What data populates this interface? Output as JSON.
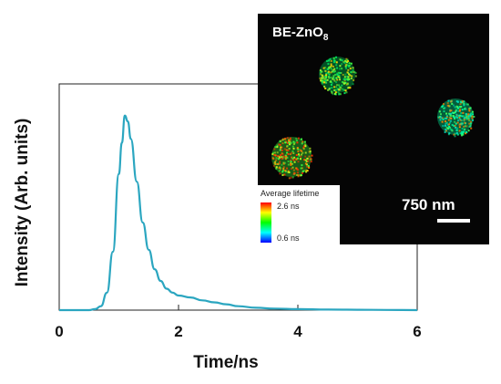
{
  "chart_data": {
    "type": "line",
    "xlabel": "Time/ns",
    "ylabel": "Intensity (Arb. units)",
    "xlim": [
      0,
      6
    ],
    "ylim": [
      0,
      1.0
    ],
    "x_ticks": [
      "0",
      "2",
      "4",
      "6"
    ],
    "y_ticks_shown": false,
    "grid": false,
    "line_color": "#2ba6c0",
    "series": [
      {
        "x": [
          0,
          0.5,
          0.6,
          0.7,
          0.8,
          0.9,
          1.0,
          1.05,
          1.1,
          1.15,
          1.2,
          1.3,
          1.4,
          1.5,
          1.6,
          1.7,
          1.8,
          1.9,
          2.0,
          2.2,
          2.4,
          2.6,
          2.8,
          3.0,
          3.3,
          3.6,
          4.0,
          4.5,
          5.0,
          5.5,
          6.0
        ],
        "y": [
          0,
          0,
          0.005,
          0.02,
          0.09,
          0.3,
          0.7,
          0.86,
          1.0,
          0.97,
          0.88,
          0.66,
          0.45,
          0.31,
          0.21,
          0.15,
          0.11,
          0.09,
          0.075,
          0.065,
          0.05,
          0.04,
          0.03,
          0.02,
          0.012,
          0.008,
          0.005,
          0.003,
          0.002,
          0.001,
          0.0
        ]
      }
    ]
  },
  "inset": {
    "title_main": "BE-ZnO",
    "title_sub": "8",
    "scale_label": "750 nm",
    "background": "#050505",
    "legend": {
      "title": "Average lifetime",
      "max_label": "2.6 ns",
      "min_label": "0.6 ns",
      "colors": [
        "#ff0000",
        "#ffff00",
        "#00ff00",
        "#00ffff",
        "#0000ff"
      ]
    },
    "particles": [
      {
        "name": "particle-top",
        "colors": [
          "#00e060",
          "#40ff40",
          "#a0ff30",
          "#ffd000"
        ]
      },
      {
        "name": "particle-right",
        "colors": [
          "#00ffa0",
          "#00e0c0",
          "#40ff60",
          "#ff8000"
        ]
      },
      {
        "name": "particle-left",
        "colors": [
          "#40ff40",
          "#c0ff20",
          "#ff8000",
          "#ff3000"
        ]
      }
    ]
  }
}
